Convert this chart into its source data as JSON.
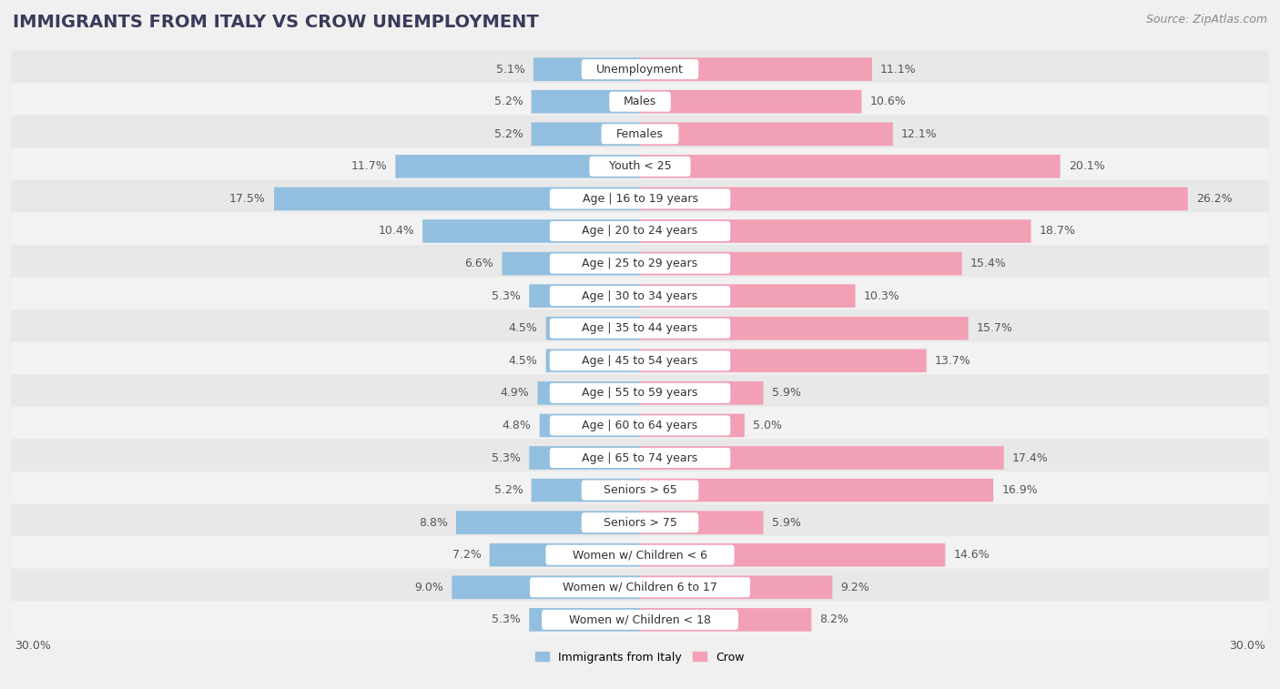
{
  "title": "IMMIGRANTS FROM ITALY VS CROW UNEMPLOYMENT",
  "source": "Source: ZipAtlas.com",
  "categories": [
    "Unemployment",
    "Males",
    "Females",
    "Youth < 25",
    "Age | 16 to 19 years",
    "Age | 20 to 24 years",
    "Age | 25 to 29 years",
    "Age | 30 to 34 years",
    "Age | 35 to 44 years",
    "Age | 45 to 54 years",
    "Age | 55 to 59 years",
    "Age | 60 to 64 years",
    "Age | 65 to 74 years",
    "Seniors > 65",
    "Seniors > 75",
    "Women w/ Children < 6",
    "Women w/ Children 6 to 17",
    "Women w/ Children < 18"
  ],
  "italy_values": [
    5.1,
    5.2,
    5.2,
    11.7,
    17.5,
    10.4,
    6.6,
    5.3,
    4.5,
    4.5,
    4.9,
    4.8,
    5.3,
    5.2,
    8.8,
    7.2,
    9.0,
    5.3
  ],
  "crow_values": [
    11.1,
    10.6,
    12.1,
    20.1,
    26.2,
    18.7,
    15.4,
    10.3,
    15.7,
    13.7,
    5.9,
    5.0,
    17.4,
    16.9,
    5.9,
    14.6,
    9.2,
    8.2
  ],
  "italy_color": "#92bfdf",
  "crow_color": "#f2a0b5",
  "row_bg_odd": "#e8e8e8",
  "row_bg_even": "#f2f2f2",
  "background_color": "#f0f0f0",
  "label_bg": "#ffffff",
  "xlim": 30.0,
  "legend_italy": "Immigrants from Italy",
  "legend_crow": "Crow",
  "title_fontsize": 14,
  "source_fontsize": 9,
  "label_fontsize": 9,
  "value_fontsize": 9,
  "bar_height": 0.72
}
